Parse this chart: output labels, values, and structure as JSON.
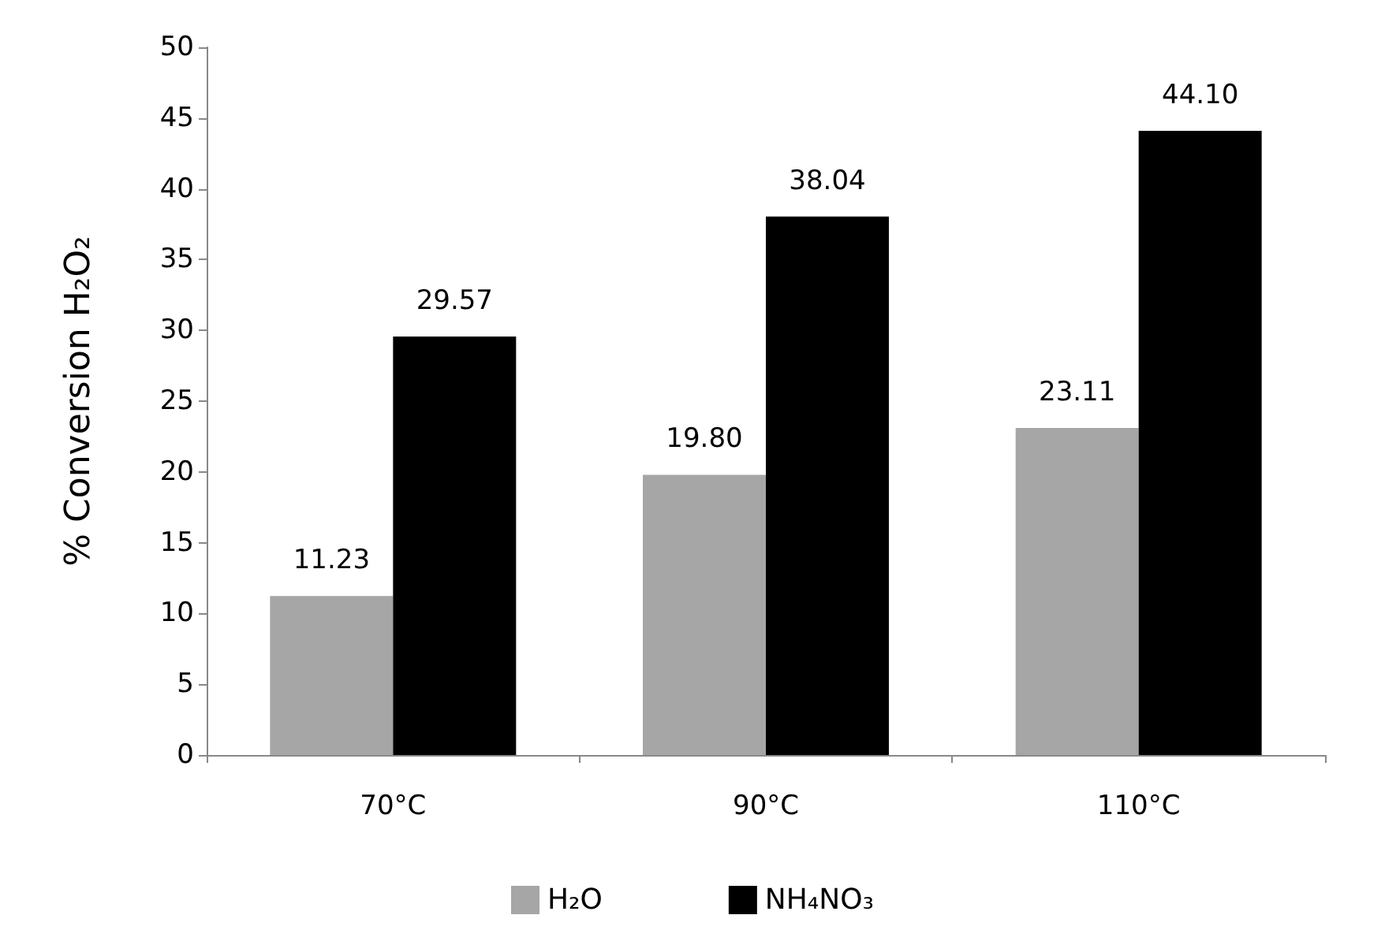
{
  "chart_data": {
    "type": "bar",
    "ylabel": "% Conversion H₂O₂",
    "categories": [
      "70°C",
      "90°C",
      "110°C"
    ],
    "series": [
      {
        "name": "H₂O",
        "color": "#a6a6a6",
        "values": [
          11.23,
          19.8,
          23.11
        ],
        "value_labels": [
          "11.23",
          "19.80",
          "23.11"
        ]
      },
      {
        "name": "NH₄NO₃",
        "color": "#000000",
        "values": [
          29.57,
          38.04,
          44.1
        ],
        "value_labels": [
          "29.57",
          "38.04",
          "44.10"
        ]
      }
    ],
    "ylim": [
      0,
      50
    ],
    "yticks": [
      0,
      5,
      10,
      15,
      20,
      25,
      30,
      35,
      40,
      45,
      50
    ],
    "grid": false,
    "legend": "bottom"
  }
}
